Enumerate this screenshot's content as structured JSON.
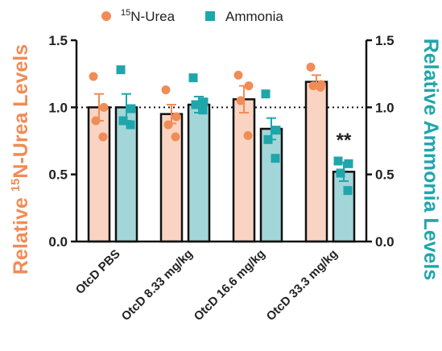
{
  "chart_data": {
    "type": "bar",
    "categories": [
      "OtcD PBS",
      "OtcD 8.33 mg/kg",
      "OtcD 16.6 mg/kg",
      "OtcD 33.3 mg/kg"
    ],
    "y_left_label_pre": "Relative ",
    "y_left_label_sup": "15",
    "y_left_label_post": "N-Urea Levels",
    "y_right_label": "Relative Ammonia Levels",
    "ylim": [
      0,
      1.5
    ],
    "yticks": [
      "0.0",
      "0.5",
      "1.0",
      "1.5"
    ],
    "ytick_values": [
      0,
      0.5,
      1.0,
      1.5
    ],
    "reference_line": 1.0,
    "legend_position": "top-center",
    "series": [
      {
        "name_sup": "15",
        "name": "N-Urea",
        "color": "#F08C57",
        "fill": "#FAD4C2",
        "values": [
          1.0,
          0.95,
          1.06,
          1.19
        ],
        "errors": [
          0.1,
          0.07,
          0.1,
          0.05
        ],
        "points": [
          [
            1.23,
            1.0,
            0.9,
            0.78
          ],
          [
            1.13,
            0.93,
            0.87,
            0.78
          ],
          [
            1.24,
            1.16,
            1.05,
            0.79
          ],
          [
            1.3,
            1.17,
            1.16,
            1.15
          ]
        ]
      },
      {
        "name": "Ammonia",
        "color": "#1FA6AB",
        "fill": "#A3D6D9",
        "values": [
          1.0,
          1.02,
          0.84,
          0.52
        ],
        "errors": [
          0.1,
          0.06,
          0.08,
          0.07
        ],
        "points": [
          [
            1.28,
            0.99,
            0.9,
            0.87
          ],
          [
            1.22,
            1.04,
            1.02,
            0.98
          ],
          [
            1.1,
            0.83,
            0.76,
            0.62
          ],
          [
            0.6,
            0.58,
            0.51,
            0.38
          ]
        ]
      }
    ],
    "annotations": [
      {
        "category_index": 3,
        "series_index": 1,
        "text": "**"
      }
    ]
  }
}
